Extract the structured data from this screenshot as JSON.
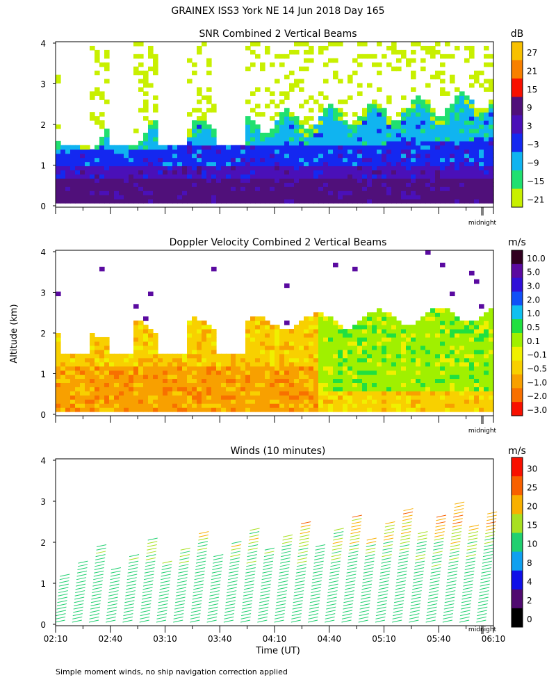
{
  "chart_data": [
    {
      "type": "heatmap",
      "title": "SNR Combined 2 Vertical Beams",
      "xlabel": "",
      "ylabel": "",
      "ylim": [
        0,
        4
      ],
      "yticks": [
        "0",
        "1",
        "2",
        "3",
        "4"
      ],
      "colorbar": {
        "unit": "dB",
        "labels": [
          "27",
          "21",
          "15",
          "9",
          "3",
          "−3",
          "−9",
          "−15",
          "−21"
        ],
        "colors": [
          "#f8c000",
          "#f88000",
          "#f81000",
          "#50107a",
          "#4a10b8",
          "#1428f0",
          "#10b4f0",
          "#20e070",
          "#c8f000"
        ]
      },
      "marker": "midnight"
    },
    {
      "type": "heatmap",
      "title": "Doppler Velocity Combined 2 Vertical Beams",
      "xlabel": "",
      "ylabel": "Altitude (km)",
      "ylim": [
        0,
        4
      ],
      "yticks": [
        "0",
        "1",
        "2",
        "3",
        "4"
      ],
      "colorbar": {
        "unit": "m/s",
        "labels": [
          "10.0",
          "5.0",
          "3.0",
          "2.0",
          "1.0",
          "0.5",
          "0.1",
          "−0.1",
          "−0.5",
          "−1.0",
          "−2.0",
          "−3.0"
        ],
        "colors": [
          "#300020",
          "#5a0aa0",
          "#3010d8",
          "#1050f8",
          "#10c0f0",
          "#20e040",
          "#a0f000",
          "#f0f000",
          "#f8d000",
          "#f8a000",
          "#f87000",
          "#f81000"
        ]
      },
      "marker": "midnight"
    },
    {
      "type": "scatter",
      "title": "Winds (10 minutes)",
      "xlabel": "Time (UT)",
      "ylabel": "",
      "ylim": [
        0,
        4
      ],
      "yticks": [
        "0",
        "1",
        "2",
        "3",
        "4"
      ],
      "xticks": [
        "02:10",
        "02:40",
        "03:10",
        "03:40",
        "04:10",
        "04:40",
        "05:10",
        "05:40",
        "06:10"
      ],
      "colorbar": {
        "unit": "m/s",
        "labels": [
          "30",
          "25",
          "20",
          "15",
          "10",
          "8",
          "4",
          "2",
          "0"
        ],
        "colors": [
          "#f81000",
          "#f86000",
          "#f8b000",
          "#a8e020",
          "#20d070",
          "#10a0f0",
          "#1010e8",
          "#500a70",
          "#000000"
        ]
      },
      "marker": "midnight"
    }
  ],
  "page": {
    "title": "GRAINEX ISS3 York NE  14 Jun 2018 Day 165",
    "footnote": "Simple moment winds, no ship navigation correction applied",
    "midnight": "midnight"
  }
}
